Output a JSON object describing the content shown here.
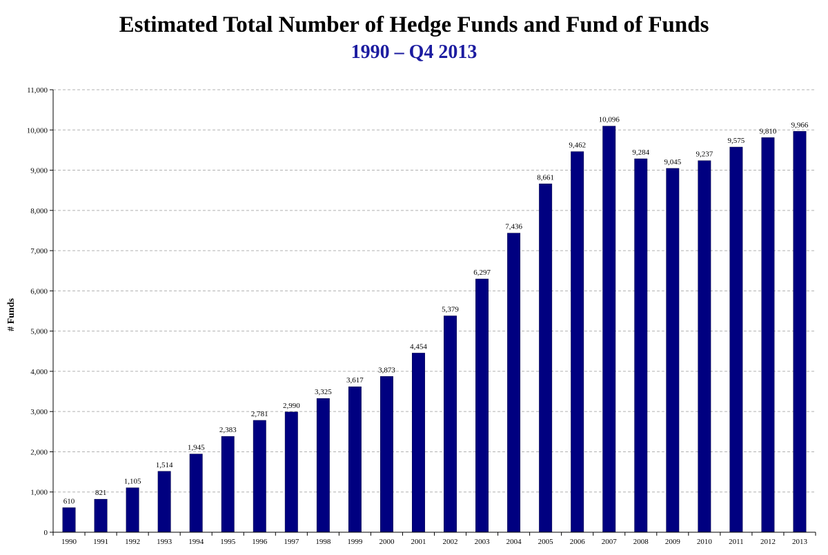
{
  "chart_data": {
    "type": "bar",
    "title": "Estimated Total Number of Hedge Funds and Fund of Funds",
    "subtitle": "1990 – Q4 2013",
    "xlabel": "",
    "ylabel": "# Funds",
    "ylim": [
      0,
      11000
    ],
    "yticks": [
      0,
      1000,
      2000,
      3000,
      4000,
      5000,
      6000,
      7000,
      8000,
      9000,
      10000,
      11000
    ],
    "ytick_labels": [
      "0",
      "1,000",
      "2,000",
      "3,000",
      "4,000",
      "5,000",
      "6,000",
      "7,000",
      "8,000",
      "9,000",
      "10,000",
      "11,000"
    ],
    "grid": true,
    "legend": "none",
    "bar_color": "#000080",
    "categories": [
      "1990",
      "1991",
      "1992",
      "1993",
      "1994",
      "1995",
      "1996",
      "1997",
      "1998",
      "1999",
      "2000",
      "2001",
      "2002",
      "2003",
      "2004",
      "2005",
      "2006",
      "2007",
      "2008",
      "2009",
      "2010",
      "2011",
      "2012",
      "2013"
    ],
    "values": [
      610,
      821,
      1105,
      1514,
      1945,
      2383,
      2781,
      2990,
      3325,
      3617,
      3873,
      4454,
      5379,
      6297,
      7436,
      8661,
      9462,
      10096,
      9284,
      9045,
      9237,
      9575,
      9810,
      9966
    ],
    "value_labels": [
      "610",
      "821",
      "1,105",
      "1,514",
      "1,945",
      "2,383",
      "2,781",
      "2,990",
      "3,325",
      "3,617",
      "3,873",
      "4,454",
      "5,379",
      "6,297",
      "7,436",
      "8,661",
      "9,462",
      "10,096",
      "9,284",
      "9,045",
      "9,237",
      "9,575",
      "9,810",
      "9,966"
    ]
  }
}
